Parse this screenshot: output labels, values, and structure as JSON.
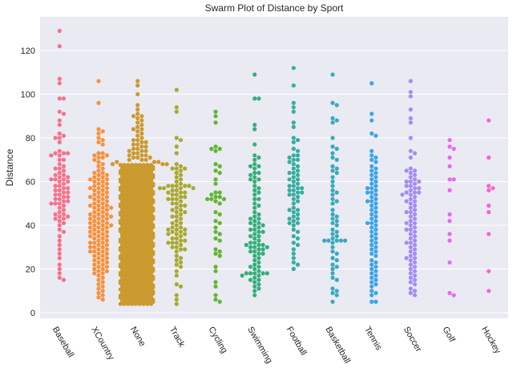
{
  "chart_data": {
    "type": "scatter",
    "subtype": "swarm",
    "title": "Swarm Plot of Distance by Sport",
    "xlabel": "",
    "ylabel": "Distance",
    "ylim": [
      -3,
      135
    ],
    "yticks": [
      0,
      20,
      40,
      60,
      80,
      100,
      120
    ],
    "grid": true,
    "legend": "none",
    "background": "#eaeaf2",
    "categories": [
      "Baseball",
      "XCountry",
      "None",
      "Track",
      "Cycling",
      "Swimming",
      "Football",
      "Basketball",
      "Tennis",
      "Soccer",
      "Golf",
      "Hockey"
    ],
    "colors": [
      "#f77189",
      "#f7913b",
      "#ca9a2e",
      "#a8a92f",
      "#62b531",
      "#33b07a",
      "#35ae9f",
      "#38aabd",
      "#3ba3ec",
      "#a48cf4",
      "#e866f4",
      "#f565cc"
    ],
    "series": [
      {
        "name": "Baseball",
        "values": [
          129,
          122,
          107,
          105,
          98,
          98,
          92,
          91,
          88,
          86,
          82,
          81,
          80,
          80,
          78,
          74,
          73,
          73,
          73,
          72,
          72,
          70,
          70,
          68,
          67,
          66,
          66,
          65,
          64,
          63,
          63,
          62,
          62,
          61,
          61,
          61,
          60,
          60,
          59,
          58,
          58,
          57,
          57,
          56,
          56,
          55,
          55,
          54,
          54,
          53,
          53,
          52,
          52,
          51,
          51,
          50,
          50,
          50,
          49,
          48,
          47,
          46,
          45,
          45,
          44,
          44,
          43,
          43,
          42,
          41,
          40,
          38,
          37,
          35,
          33,
          31,
          29,
          27,
          25,
          22,
          20,
          18,
          16,
          15
        ]
      },
      {
        "name": "XCountry",
        "values": [
          106,
          96,
          84,
          83,
          82,
          80,
          79,
          78,
          77,
          73,
          73,
          72,
          72,
          71,
          71,
          70,
          69,
          68,
          67,
          66,
          65,
          64,
          64,
          63,
          63,
          62,
          62,
          61,
          61,
          61,
          60,
          60,
          59,
          59,
          58,
          58,
          57,
          57,
          57,
          56,
          56,
          55,
          55,
          54,
          54,
          53,
          53,
          53,
          52,
          52,
          51,
          51,
          50,
          50,
          49,
          49,
          49,
          48,
          48,
          48,
          47,
          47,
          46,
          46,
          45,
          45,
          45,
          44,
          44,
          44,
          43,
          43,
          43,
          42,
          42,
          41,
          41,
          41,
          40,
          40,
          40,
          39,
          39,
          39,
          38,
          38,
          37,
          37,
          37,
          36,
          36,
          35,
          35,
          35,
          34,
          34,
          33,
          33,
          32,
          32,
          32,
          31,
          31,
          30,
          30,
          30,
          29,
          29,
          28,
          28,
          28,
          27,
          27,
          26,
          26,
          25,
          25,
          24,
          24,
          23,
          23,
          22,
          22,
          21,
          21,
          20,
          20,
          19,
          19,
          18,
          18,
          17,
          16,
          15,
          14,
          13,
          12,
          11,
          10,
          9,
          8,
          7,
          6
        ]
      },
      {
        "name": "None",
        "fill_band": {
          "from": 4,
          "to": 68,
          "density": "dense"
        },
        "values": [
          106,
          104,
          100,
          95,
          93,
          91,
          90,
          90,
          89,
          88,
          87,
          86,
          85,
          84,
          84,
          83,
          82,
          81,
          80,
          79,
          79,
          78,
          78,
          77,
          77,
          76,
          76,
          75,
          75,
          74,
          74,
          74,
          73,
          73,
          72,
          72,
          72,
          71,
          71,
          71,
          70,
          70,
          70,
          69,
          69,
          69,
          68,
          68,
          68
        ]
      },
      {
        "name": "Track",
        "values": [
          102,
          94,
          92,
          80,
          79,
          76,
          73,
          68,
          67,
          66,
          66,
          66,
          65,
          64,
          63,
          62,
          61,
          60,
          59,
          58,
          58,
          58,
          58,
          58,
          57,
          57,
          57,
          57,
          56,
          56,
          55,
          55,
          55,
          54,
          54,
          53,
          53,
          52,
          52,
          52,
          51,
          50,
          50,
          49,
          49,
          48,
          47,
          47,
          46,
          46,
          45,
          44,
          44,
          43,
          42,
          41,
          41,
          40,
          39,
          39,
          38,
          38,
          38,
          37,
          37,
          36,
          36,
          36,
          35,
          34,
          34,
          33,
          33,
          32,
          32,
          32,
          31,
          30,
          30,
          29,
          29,
          28,
          26,
          25,
          24,
          23,
          22,
          21,
          19,
          17,
          13,
          12,
          8,
          6,
          4
        ]
      },
      {
        "name": "Cycling",
        "values": [
          92,
          90,
          87,
          76,
          75,
          74,
          75,
          68,
          67,
          65,
          64,
          61,
          59,
          55,
          55,
          54,
          53,
          53,
          52,
          52,
          52,
          51,
          50,
          46,
          45,
          42,
          41,
          39,
          37,
          36,
          34,
          33,
          29,
          28,
          27,
          26,
          21,
          19,
          14,
          12,
          8,
          6,
          5
        ]
      },
      {
        "name": "Swimming",
        "values": [
          109,
          98,
          98,
          86,
          84,
          77,
          72,
          71,
          70,
          68,
          67,
          67,
          66,
          64,
          64,
          63,
          62,
          61,
          61,
          60,
          58,
          57,
          56,
          55,
          54,
          52,
          52,
          50,
          49,
          48,
          46,
          45,
          44,
          43,
          43,
          42,
          41,
          41,
          40,
          40,
          39,
          38,
          38,
          37,
          37,
          36,
          35,
          35,
          34,
          33,
          32,
          32,
          31,
          31,
          31,
          30,
          30,
          30,
          29,
          29,
          28,
          28,
          27,
          27,
          26,
          25,
          24,
          23,
          22,
          21,
          21,
          20,
          19,
          18,
          18,
          18,
          18,
          18,
          17,
          17,
          16,
          15,
          15,
          14,
          13,
          12,
          11,
          10,
          8
        ]
      },
      {
        "name": "Football",
        "values": [
          112,
          104,
          96,
          94,
          92,
          87,
          85,
          80,
          79,
          78,
          75,
          74,
          72,
          72,
          71,
          70,
          70,
          69,
          68,
          67,
          66,
          65,
          64,
          64,
          63,
          62,
          61,
          61,
          60,
          59,
          58,
          58,
          57,
          57,
          56,
          56,
          55,
          55,
          54,
          54,
          53,
          52,
          51,
          50,
          48,
          47,
          47,
          46,
          45,
          44,
          43,
          43,
          42,
          41,
          41,
          40,
          38,
          37,
          35,
          34,
          32,
          31,
          29,
          27,
          25,
          23,
          22,
          20
        ]
      },
      {
        "name": "Basketball",
        "values": [
          109,
          96,
          95,
          89,
          88,
          87,
          80,
          76,
          75,
          73,
          71,
          70,
          67,
          66,
          65,
          64,
          62,
          60,
          58,
          56,
          55,
          54,
          52,
          51,
          50,
          47,
          45,
          44,
          43,
          42,
          41,
          40,
          38,
          37,
          36,
          35,
          34,
          33,
          33,
          33,
          33,
          33,
          32,
          30,
          28,
          27,
          25,
          24,
          22,
          21,
          20,
          18,
          16,
          15,
          11,
          10,
          9,
          8,
          5
        ]
      },
      {
        "name": "Tennis",
        "values": [
          105,
          91,
          88,
          82,
          81,
          74,
          72,
          71,
          70,
          69,
          67,
          66,
          65,
          64,
          63,
          62,
          61,
          60,
          59,
          58,
          57,
          57,
          56,
          55,
          55,
          54,
          53,
          52,
          51,
          51,
          50,
          49,
          48,
          47,
          46,
          45,
          44,
          43,
          42,
          41,
          41,
          40,
          39,
          38,
          37,
          36,
          35,
          34,
          33,
          32,
          31,
          30,
          29,
          28,
          27,
          26,
          24,
          23,
          22,
          21,
          20,
          19,
          18,
          17,
          16,
          15,
          14,
          13,
          12,
          10,
          9,
          8,
          5,
          5
        ]
      },
      {
        "name": "Soccer",
        "values": [
          106,
          101,
          99,
          93,
          89,
          87,
          80,
          74,
          73,
          71,
          66,
          65,
          65,
          64,
          63,
          62,
          61,
          60,
          60,
          60,
          59,
          58,
          58,
          57,
          57,
          56,
          55,
          55,
          55,
          54,
          54,
          53,
          52,
          51,
          51,
          50,
          49,
          48,
          47,
          46,
          46,
          45,
          44,
          43,
          42,
          41,
          41,
          40,
          39,
          38,
          38,
          37,
          36,
          35,
          34,
          33,
          32,
          32,
          31,
          30,
          29,
          28,
          27,
          26,
          25,
          25,
          24,
          23,
          22,
          21,
          20,
          19,
          18,
          17,
          16,
          15,
          14,
          13,
          11,
          10,
          9,
          8
        ]
      },
      {
        "name": "Golf",
        "values": [
          79,
          76,
          75,
          71,
          67,
          61,
          61,
          56,
          45,
          42,
          36,
          33,
          23,
          9,
          8
        ]
      },
      {
        "name": "Hockey",
        "values": [
          88,
          71,
          58,
          57,
          56,
          49,
          46,
          36,
          19,
          10
        ]
      }
    ]
  }
}
